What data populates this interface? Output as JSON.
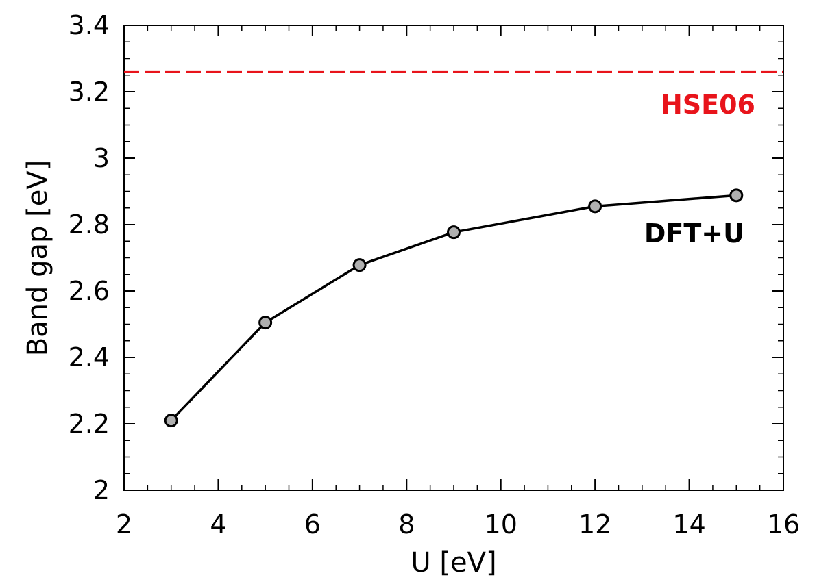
{
  "chart_data": {
    "type": "line",
    "title": "",
    "xlabel": "U [eV]",
    "ylabel": "Band gap [eV]",
    "xlim": [
      2,
      16
    ],
    "ylim": [
      2,
      3.4
    ],
    "xticks": [
      2,
      4,
      6,
      8,
      10,
      12,
      14,
      16
    ],
    "yticks": [
      2,
      2.2,
      2.4,
      2.6,
      2.8,
      3,
      3.2,
      3.4
    ],
    "xtick_labels": [
      "2",
      "4",
      "6",
      "8",
      "10",
      "12",
      "14",
      "16"
    ],
    "ytick_labels": [
      "2",
      "2.2",
      "2.4",
      "2.6",
      "2.8",
      "3",
      "3.2",
      "3.4"
    ],
    "grid": false,
    "series": [
      {
        "name": "DFT+U",
        "x": [
          3,
          5,
          7,
          9,
          12,
          15
        ],
        "y": [
          2.21,
          2.505,
          2.678,
          2.777,
          2.855,
          2.888
        ],
        "color": "#000000",
        "marker_fill": "#b0b0b0"
      }
    ],
    "reference_lines": [
      {
        "name": "HSE06",
        "y": 3.26,
        "color": "#e8141b",
        "style": "dashed"
      }
    ],
    "annotations": [
      {
        "text": "HSE06",
        "color": "#e8141b"
      },
      {
        "text": "DFT+U",
        "color": "#000000"
      }
    ]
  }
}
